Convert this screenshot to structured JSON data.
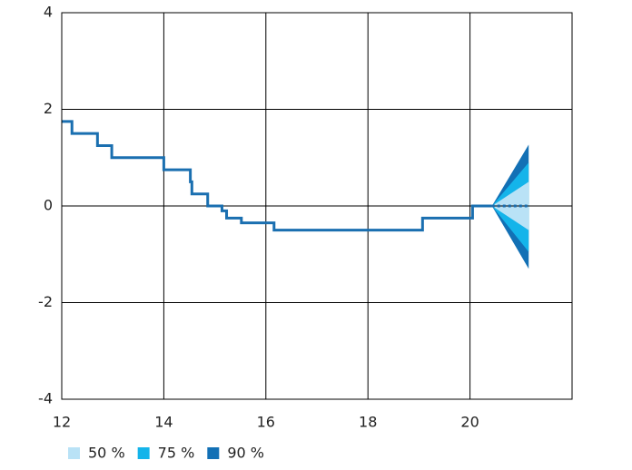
{
  "chart_data": {
    "type": "fan",
    "xlim": [
      12,
      22
    ],
    "xticks": [
      12,
      14,
      16,
      18,
      20
    ],
    "ylim": [
      -4,
      4
    ],
    "yticks": [
      -4,
      -2,
      0,
      2,
      4
    ],
    "grid": true,
    "line": {
      "color": "#1a6fb0",
      "x": [
        12,
        12.2,
        12.2,
        12.7,
        12.7,
        12.98,
        12.98,
        14,
        14,
        14.52,
        14.52,
        14.55,
        14.55,
        14.86,
        14.86,
        15.14,
        15.14,
        15.23,
        15.23,
        15.52,
        15.52,
        16.16,
        16.16,
        19.07,
        19.07,
        20.05,
        20.05,
        20.43
      ],
      "values": [
        1.75,
        1.75,
        1.5,
        1.5,
        1.25,
        1.25,
        1,
        1,
        0.75,
        0.75,
        0.5,
        0.5,
        0.25,
        0.25,
        0,
        0,
        -0.1,
        -0.1,
        -0.25,
        -0.25,
        -0.35,
        -0.35,
        -0.5,
        -0.5,
        -0.25,
        -0.25,
        0,
        0
      ]
    },
    "projection": {
      "color": "#1a6fb0",
      "x": [
        20.43,
        21.15
      ],
      "values": [
        0,
        0
      ]
    },
    "fan_x": [
      20.43,
      21.15
    ],
    "series": [
      {
        "name": "90 %",
        "color": "#1270b5",
        "lower": [
          0,
          -1.3
        ],
        "upper": [
          0,
          1.27
        ]
      },
      {
        "name": "75 %",
        "color": "#14b4ea",
        "lower": [
          0,
          -0.95
        ],
        "upper": [
          0,
          0.9
        ]
      },
      {
        "name": "50 %",
        "color": "#b9e2f6",
        "lower": [
          0,
          -0.5
        ],
        "upper": [
          0,
          0.5
        ]
      }
    ]
  }
}
